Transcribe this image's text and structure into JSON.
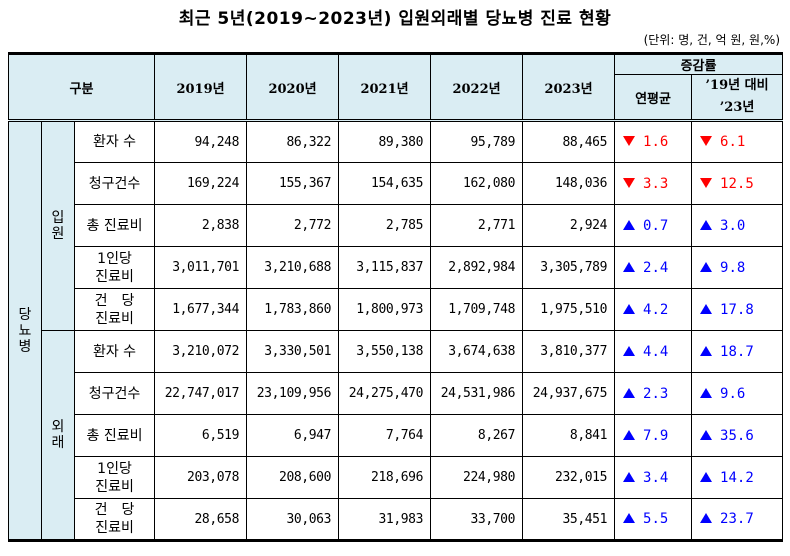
{
  "title": "최근 5년(2019~2023년) 입원외래별 당뇨병 진료 현황",
  "unit": "(단위: 명, 건, 억 원, 원,%)",
  "header": {
    "category": "구분",
    "years": [
      "2019년",
      "2020년",
      "2021년",
      "2022년",
      "2023년"
    ],
    "change_group": "증감률",
    "annual_avg": "연평균",
    "vs_label_line1": "’19년 대비",
    "vs_label_line2": "’23년"
  },
  "disease": "당뇨병",
  "groups": [
    {
      "name": "입원",
      "rows": [
        {
          "label": "환자 수",
          "values": [
            "94,248",
            "86,322",
            "89,380",
            "95,789",
            "88,465"
          ],
          "avg": {
            "dir": "down",
            "value": "1.6"
          },
          "vs": {
            "dir": "down",
            "value": "6.1"
          }
        },
        {
          "label": "청구건수",
          "values": [
            "169,224",
            "155,367",
            "154,635",
            "162,080",
            "148,036"
          ],
          "avg": {
            "dir": "down",
            "value": "3.3"
          },
          "vs": {
            "dir": "down",
            "value": "12.5"
          }
        },
        {
          "label": "총 진료비",
          "values": [
            "2,838",
            "2,772",
            "2,785",
            "2,771",
            "2,924"
          ],
          "avg": {
            "dir": "up",
            "value": "0.7"
          },
          "vs": {
            "dir": "up",
            "value": "3.0"
          }
        },
        {
          "label": "1인당",
          "label2": "진료비",
          "values": [
            "3,011,701",
            "3,210,688",
            "3,115,837",
            "2,892,984",
            "3,305,789"
          ],
          "avg": {
            "dir": "up",
            "value": "2.4"
          },
          "vs": {
            "dir": "up",
            "value": "9.8"
          }
        },
        {
          "label": "건　당",
          "label2": "진료비",
          "values": [
            "1,677,344",
            "1,783,860",
            "1,800,973",
            "1,709,748",
            "1,975,510"
          ],
          "avg": {
            "dir": "up",
            "value": "4.2"
          },
          "vs": {
            "dir": "up",
            "value": "17.8"
          }
        }
      ]
    },
    {
      "name": "외래",
      "rows": [
        {
          "label": "환자 수",
          "values": [
            "3,210,072",
            "3,330,501",
            "3,550,138",
            "3,674,638",
            "3,810,377"
          ],
          "avg": {
            "dir": "up",
            "value": "4.4"
          },
          "vs": {
            "dir": "up",
            "value": "18.7"
          }
        },
        {
          "label": "청구건수",
          "values": [
            "22,747,017",
            "23,109,956",
            "24,275,470",
            "24,531,986",
            "24,937,675"
          ],
          "avg": {
            "dir": "up",
            "value": "2.3"
          },
          "vs": {
            "dir": "up",
            "value": "9.6"
          }
        },
        {
          "label": "총 진료비",
          "values": [
            "6,519",
            "6,947",
            "7,764",
            "8,267",
            "8,841"
          ],
          "avg": {
            "dir": "up",
            "value": "7.9"
          },
          "vs": {
            "dir": "up",
            "value": "35.6"
          }
        },
        {
          "label": "1인당",
          "label2": "진료비",
          "values": [
            "203,078",
            "208,600",
            "218,696",
            "224,980",
            "232,015"
          ],
          "avg": {
            "dir": "up",
            "value": "3.4"
          },
          "vs": {
            "dir": "up",
            "value": "14.2"
          }
        },
        {
          "label": "건　당",
          "label2": "진료비",
          "values": [
            "28,658",
            "30,063",
            "31,983",
            "33,700",
            "35,451"
          ],
          "avg": {
            "dir": "up",
            "value": "5.5"
          },
          "vs": {
            "dir": "up",
            "value": "23.7"
          }
        }
      ]
    }
  ],
  "colors": {
    "header_bg": "#daedf3",
    "decrease": "#ff0000",
    "increase": "#0000ff"
  }
}
